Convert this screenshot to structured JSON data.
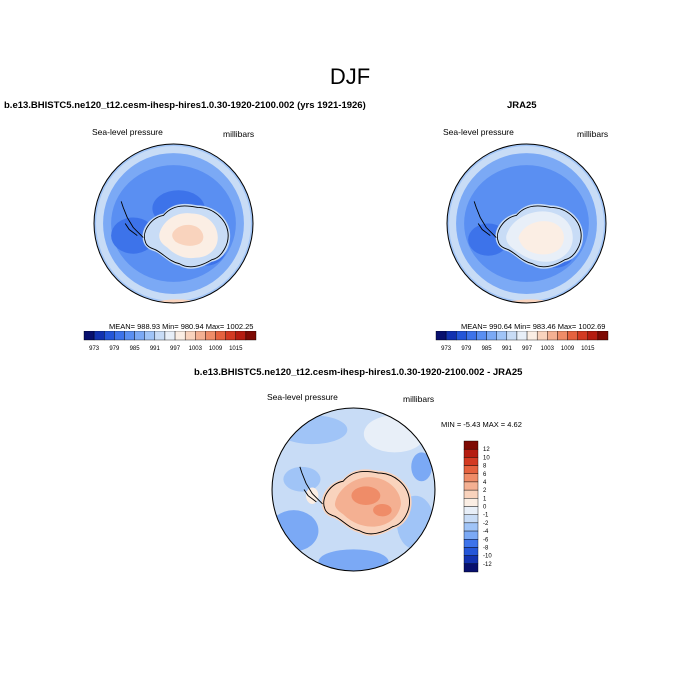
{
  "title": "DJF",
  "panels": {
    "model": {
      "title": "b.e13.BHISTC5.ne120_t12.cesm-ihesp-hires1.0.30-1920-2100.002 (yrs 1921-1926)",
      "left_label": "Sea-level pressure",
      "right_label": "millibars",
      "stats": "MEAN= 988.93  Min= 980.94  Max= 1002.25"
    },
    "obs": {
      "title": "JRA25",
      "left_label": "Sea-level pressure",
      "right_label": "millibars",
      "stats": "MEAN= 990.64  Min= 983.46  Max= 1002.69"
    },
    "diff": {
      "title": "b.e13.BHISTC5.ne120_t12.cesm-ihesp-hires1.0.30-1920-2100.002 - JRA25",
      "left_label": "Sea-level pressure",
      "right_label": "millibars",
      "stats": "MIN =  -5.43 MAX =   4.62"
    }
  },
  "chart_data": [
    {
      "type": "heatmap",
      "projection": "south-polar-stereographic",
      "variable": "Sea-level pressure",
      "units": "millibars",
      "season": "DJF",
      "stats": {
        "mean": 988.93,
        "min": 980.94,
        "max": 1002.25
      },
      "colorbar": {
        "orientation": "horizontal",
        "tick_labels": [
          "973",
          "979",
          "985",
          "991",
          "997",
          "1003",
          "1009",
          "1015"
        ],
        "colors": [
          "#08106e",
          "#1232b0",
          "#2456d8",
          "#3d73ea",
          "#5a8ff2",
          "#7ba9f5",
          "#a0c4f7",
          "#c8dcf6",
          "#e8eff8",
          "#fbeee4",
          "#f9d3bd",
          "#f4b092",
          "#ef8c68",
          "#e5623f",
          "#d33a22",
          "#b51c10",
          "#7e0a04"
        ]
      }
    },
    {
      "type": "heatmap",
      "projection": "south-polar-stereographic",
      "variable": "Sea-level pressure",
      "units": "millibars",
      "season": "DJF",
      "stats": {
        "mean": 990.64,
        "min": 983.46,
        "max": 1002.69
      },
      "colorbar": {
        "orientation": "horizontal",
        "tick_labels": [
          "973",
          "979",
          "985",
          "991",
          "997",
          "1003",
          "1009",
          "1015"
        ],
        "colors": [
          "#08106e",
          "#1232b0",
          "#2456d8",
          "#3d73ea",
          "#5a8ff2",
          "#7ba9f5",
          "#a0c4f7",
          "#c8dcf6",
          "#e8eff8",
          "#fbeee4",
          "#f9d3bd",
          "#f4b092",
          "#ef8c68",
          "#e5623f",
          "#d33a22",
          "#b51c10",
          "#7e0a04"
        ]
      }
    },
    {
      "type": "heatmap",
      "projection": "south-polar-stereographic",
      "variable": "Sea-level pressure difference",
      "units": "millibars",
      "season": "DJF",
      "stats": {
        "min": -5.43,
        "max": 4.62
      },
      "colorbar": {
        "orientation": "vertical",
        "tick_labels": [
          "12",
          "10",
          "8",
          "6",
          "4",
          "2",
          "1",
          "0",
          "-1",
          "-2",
          "-4",
          "-6",
          "-8",
          "-10",
          "-12"
        ],
        "colors": [
          "#7e0a04",
          "#b51c10",
          "#d33a22",
          "#e5623f",
          "#ef8c68",
          "#f4b092",
          "#f9d3bd",
          "#fbeee4",
          "#e8eff8",
          "#c8dcf6",
          "#a0c4f7",
          "#7ba9f5",
          "#3d73ea",
          "#2456d8",
          "#1232b0",
          "#08106e"
        ]
      }
    }
  ]
}
